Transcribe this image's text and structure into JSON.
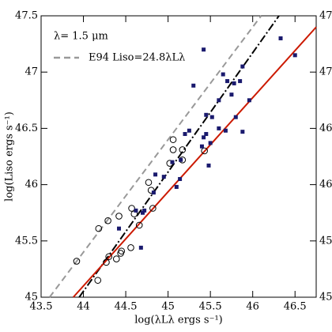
{
  "chart_data": {
    "type": "scatter",
    "xlabel": "log(λLλ ergs s⁻¹)",
    "ylabel": "log(Liso ergs s⁻¹)",
    "xlim": [
      43.5,
      46.75
    ],
    "ylim": [
      45,
      47.5
    ],
    "xticks": [
      43.5,
      44,
      44.5,
      45,
      45.5,
      46,
      46.5
    ],
    "yticks": [
      45,
      45.5,
      46,
      46.5,
      47,
      47.5
    ],
    "annotation": "λ= 1.5 μm",
    "series": [
      {
        "marker": "circle",
        "color": "#000000",
        "x": [
          43.92,
          44.18,
          44.29,
          44.42,
          44.17,
          44.27,
          44.3,
          44.39,
          44.44,
          44.45,
          44.56,
          44.57,
          44.6,
          44.66,
          44.77,
          44.8,
          44.82,
          45.02,
          45.06,
          45.06,
          45.17,
          45.17,
          45.43
        ],
        "values": [
          45.32,
          45.61,
          45.68,
          45.72,
          45.15,
          45.31,
          45.36,
          45.34,
          45.39,
          45.41,
          45.44,
          45.79,
          45.74,
          45.64,
          46.02,
          45.95,
          45.79,
          46.19,
          46.4,
          46.31,
          46.31,
          46.22,
          46.3
        ]
      },
      {
        "marker": "square",
        "color": "#1a1a6e",
        "x": [
          45.3,
          45.42,
          46.33,
          46.5,
          45.65,
          45.7,
          45.78,
          45.85,
          45.88,
          45.96,
          45.75,
          45.6,
          45.8,
          45.52,
          45.45,
          45.6,
          45.68,
          45.88,
          45.25,
          45.2,
          45.42,
          45.45,
          45.5,
          45.4,
          45.15,
          45.14,
          45.05,
          45.48,
          44.95,
          44.85,
          44.83,
          44.7,
          44.72,
          44.68,
          44.62,
          44.42,
          45.1
        ],
        "values": [
          46.88,
          47.2,
          47.3,
          47.15,
          46.98,
          46.92,
          46.9,
          46.92,
          47.05,
          46.75,
          46.8,
          46.75,
          46.6,
          46.6,
          46.62,
          46.5,
          46.48,
          46.47,
          46.48,
          46.45,
          46.42,
          46.45,
          46.37,
          46.34,
          46.22,
          46.05,
          46.2,
          46.17,
          46.07,
          46.09,
          45.93,
          45.75,
          45.77,
          45.44,
          45.77,
          45.61,
          45.98
        ]
      }
    ],
    "lines": [
      {
        "name": "E94 Liso=24.8λLλ",
        "color": "#999999",
        "dash": "8,5",
        "x": [
          43.6,
          46.1
        ],
        "values": [
          45.0,
          47.5
        ]
      },
      {
        "color": "#000000",
        "dash": "10,3,2,3",
        "x": [
          43.95,
          46.31
        ],
        "values": [
          45.0,
          47.5
        ]
      },
      {
        "color": "#cc1a00",
        "dash": "none",
        "x": [
          43.88,
          46.75
        ],
        "values": [
          45.0,
          47.4
        ]
      }
    ]
  }
}
